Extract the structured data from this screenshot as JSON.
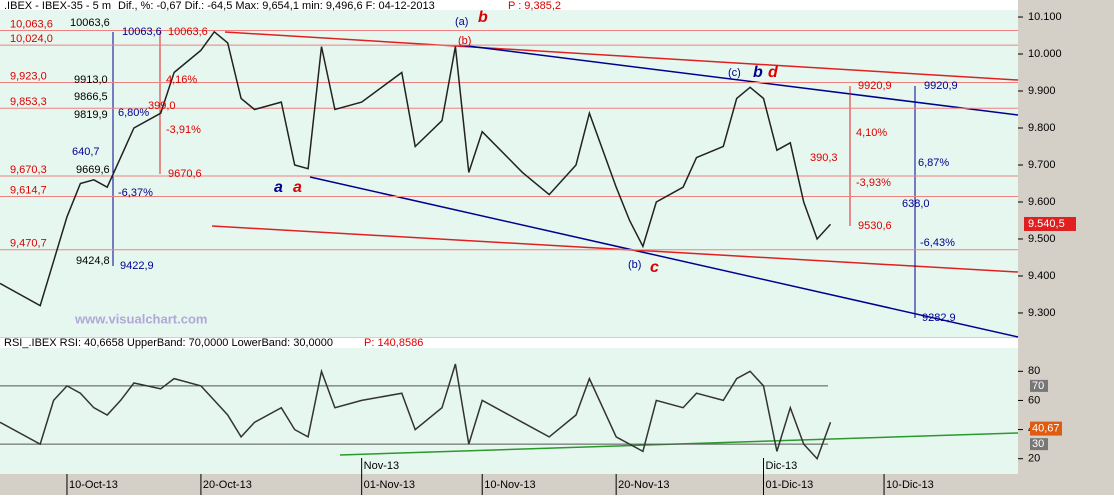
{
  "header": {
    "symbol": ".IBEX - IBEX-35 - 5 m",
    "stats": "Dif., %: -0,67  Dif.: -64,5  Max: 9,654,1  min: 9,496,6  F: 04-12-2013",
    "price": "P : 9,385,2"
  },
  "watermark": "www.visualchart.com",
  "chart_data": [
    {
      "type": "line",
      "color": "#222222",
      "x": [
        "2013-10-05",
        "2013-10-08",
        "2013-10-09",
        "2013-10-10",
        "2013-10-11",
        "2013-10-12",
        "2013-10-13",
        "2013-10-14",
        "2013-10-15",
        "2013-10-17",
        "2013-10-18",
        "2013-10-20",
        "2013-10-21",
        "2013-10-22",
        "2013-10-23",
        "2013-10-24",
        "2013-10-26",
        "2013-10-27",
        "2013-10-28",
        "2013-10-29",
        "2013-10-30",
        "2013-11-01",
        "2013-11-04",
        "2013-11-05",
        "2013-11-07",
        "2013-11-08",
        "2013-11-09",
        "2013-11-10",
        "2013-11-13",
        "2013-11-15",
        "2013-11-17",
        "2013-11-18",
        "2013-11-20",
        "2013-11-21",
        "2013-11-22",
        "2013-11-23",
        "2013-11-25",
        "2013-11-26",
        "2013-11-28",
        "2013-11-29",
        "2013-11-30",
        "2013-12-01",
        "2013-12-02",
        "2013-12-03",
        "2013-12-04",
        "2013-12-05",
        "2013-12-06"
      ],
      "values": [
        9380,
        9320,
        9440,
        9560,
        9650,
        9660,
        9640,
        9720,
        9800,
        9840,
        9950,
        10010,
        10060,
        10030,
        9880,
        9850,
        9870,
        9700,
        9690,
        10020,
        9850,
        9870,
        9950,
        9750,
        9820,
        10020,
        9680,
        9790,
        9680,
        9620,
        9700,
        9840,
        9640,
        9550,
        9480,
        9600,
        9640,
        9720,
        9750,
        9880,
        9910,
        9880,
        9740,
        9760,
        9600,
        9500,
        9540
      ],
      "xlim": [
        "2013-10-05",
        "2013-12-20"
      ],
      "xticks": [
        {
          "value": "2013-10-10",
          "label": "10-Oct-13"
        },
        {
          "value": "2013-10-20",
          "label": "20-Oct-13"
        },
        {
          "value": "2013-11-01",
          "label": "01-Nov-13"
        },
        {
          "value": "2013-11-10",
          "label": "10-Nov-13"
        },
        {
          "value": "2013-11-20",
          "label": "20-Nov-13"
        },
        {
          "value": "2013-12-01",
          "label": "01-Dic-13"
        },
        {
          "value": "2013-12-10",
          "label": "10-Dic-13"
        }
      ],
      "ylim": [
        9235,
        10119
      ],
      "yticks": [
        {
          "value": 10100,
          "label": "10.100"
        },
        {
          "value": 10000,
          "label": "10.000"
        },
        {
          "value": 9900,
          "label": "9.900"
        },
        {
          "value": 9800,
          "label": "9.800"
        },
        {
          "value": 9700,
          "label": "9.700"
        },
        {
          "value": 9600,
          "label": "9.600"
        },
        {
          "value": 9500,
          "label": "9.500"
        },
        {
          "value": 9400,
          "label": "9.400"
        },
        {
          "value": 9300,
          "label": "9.300"
        }
      ],
      "last_price": {
        "value": 9540.5,
        "label": "9.540,5"
      },
      "levels": [
        {
          "value": 10063.6,
          "label": "10,063,6"
        },
        {
          "value": 10024.0,
          "label": "10,024,0"
        },
        {
          "value": 9923.0,
          "label": "9,923,0"
        },
        {
          "value": 9853.3,
          "label": "9,853,3"
        },
        {
          "value": 9670.3,
          "label": "9,670,3"
        },
        {
          "value": 9614.7,
          "label": "9,614,7"
        },
        {
          "value": 9470.7,
          "label": "9,470,7"
        }
      ],
      "annotations": [
        "10063,6",
        "10063,6",
        "10063,6",
        "(a)",
        "b",
        "(b)",
        "(c)",
        "b",
        "d",
        "9913,0",
        "9866,5",
        "9819,9",
        "4,16%",
        "399,0",
        "6,80%",
        "-3,91%",
        "640,7",
        "9669,6",
        "-6,37%",
        "9670,6",
        "9424,8",
        "9422,9",
        "a",
        "a",
        "(b)",
        "c",
        "9920,9",
        "9920,9",
        "4,10%",
        "390,3",
        "6,87%",
        "-3,93%",
        "638,0",
        "9530,6",
        "-6,43%",
        "9282,9"
      ]
    },
    {
      "type": "line",
      "color": "#333333",
      "title": "RSI_.IBEX RSI: 40,6658 UpperBand: 70,0000 LowerBand: 30,0000",
      "title_price": "P: 140,8586",
      "x": [
        "2013-10-05",
        "2013-10-08",
        "2013-10-09",
        "2013-10-10",
        "2013-10-11",
        "2013-10-12",
        "2013-10-13",
        "2013-10-14",
        "2013-10-15",
        "2013-10-17",
        "2013-10-18",
        "2013-10-20",
        "2013-10-21",
        "2013-10-22",
        "2013-10-23",
        "2013-10-24",
        "2013-10-26",
        "2013-10-27",
        "2013-10-28",
        "2013-10-29",
        "2013-10-30",
        "2013-11-01",
        "2013-11-04",
        "2013-11-05",
        "2013-11-07",
        "2013-11-08",
        "2013-11-09",
        "2013-11-10",
        "2013-11-13",
        "2013-11-15",
        "2013-11-17",
        "2013-11-18",
        "2013-11-20",
        "2013-11-21",
        "2013-11-22",
        "2013-11-23",
        "2013-11-25",
        "2013-11-26",
        "2013-11-28",
        "2013-11-29",
        "2013-11-30",
        "2013-12-01",
        "2013-12-02",
        "2013-12-03",
        "2013-12-04",
        "2013-12-05",
        "2013-12-06"
      ],
      "values": [
        45,
        30,
        60,
        70,
        65,
        55,
        50,
        60,
        72,
        68,
        75,
        70,
        60,
        50,
        35,
        45,
        55,
        40,
        35,
        80,
        55,
        60,
        65,
        40,
        55,
        85,
        30,
        60,
        45,
        35,
        50,
        75,
        35,
        30,
        25,
        60,
        55,
        65,
        60,
        75,
        80,
        70,
        25,
        55,
        30,
        20,
        45
      ],
      "xlim": [
        "2013-10-05",
        "2013-12-20"
      ],
      "xticks": [
        {
          "value": "2013-11-01",
          "label": "Nov-13"
        },
        {
          "value": "2013-12-01",
          "label": "Dic-13"
        }
      ],
      "ylim": [
        9.5,
        96
      ],
      "yticks": [
        80,
        60,
        40,
        20
      ],
      "bands": [
        70,
        30
      ],
      "last_value": {
        "value": 40.67,
        "label": "40,67"
      }
    }
  ]
}
